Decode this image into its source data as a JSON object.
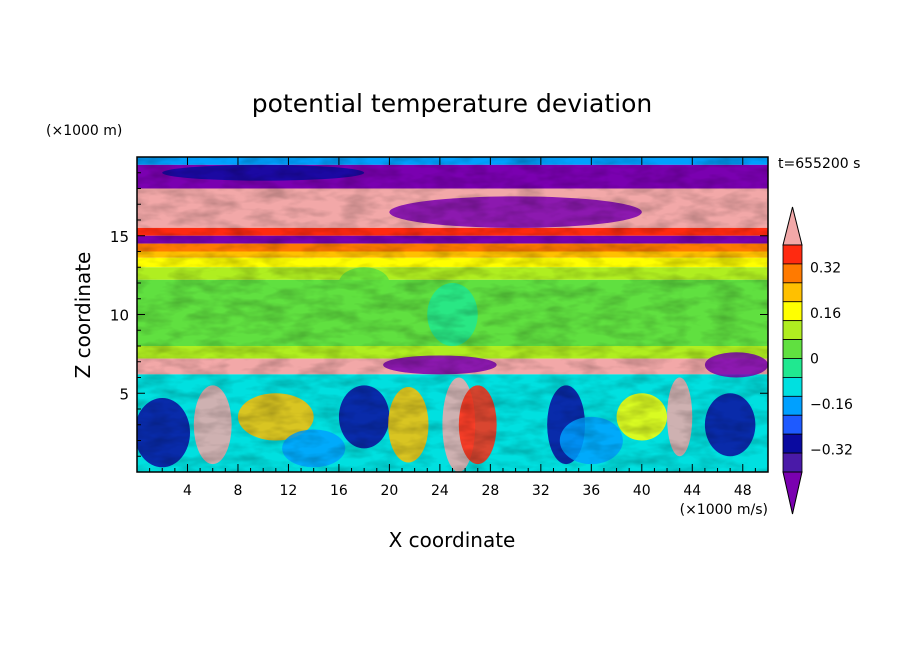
{
  "chart_data": {
    "type": "heatmap",
    "title": "potential temperature deviation",
    "xlabel": "X coordinate",
    "ylabel": "Z coordinate",
    "x_unit": "(×1000 m/s)",
    "y_unit": "(×1000 m)",
    "time_label": "t=655200 s",
    "xlim": [
      0,
      50
    ],
    "ylim": [
      0,
      20
    ],
    "x_ticks": [
      4,
      8,
      12,
      16,
      20,
      24,
      28,
      32,
      36,
      40,
      44,
      48
    ],
    "y_ticks": [
      5,
      10,
      15
    ],
    "colorbar": {
      "levels": [
        -0.48,
        -0.4,
        -0.32,
        -0.24,
        -0.16,
        -0.08,
        0,
        0.08,
        0.16,
        0.24,
        0.32,
        0.4,
        0.48
      ],
      "tick_labels": [
        "0.32",
        "0.16",
        "0",
        "−0.16",
        "−0.32"
      ],
      "tick_values": [
        0.32,
        0.16,
        0,
        -0.16,
        -0.32
      ],
      "colors": [
        "#7a00b0",
        "#4a1aa8",
        "#0a0aa0",
        "#1e5aff",
        "#00a0ff",
        "#00e0e0",
        "#20e890",
        "#60e040",
        "#b0ee20",
        "#ffff00",
        "#ffc000",
        "#ff7a00",
        "#ff2a10",
        "#f2a8a8"
      ]
    },
    "bands": [
      {
        "z": [
          19.5,
          20
        ],
        "value": -0.2
      },
      {
        "z": [
          18,
          19.5
        ],
        "value": -0.5
      },
      {
        "z": [
          15.5,
          18
        ],
        "value": 0.5
      },
      {
        "z": [
          15,
          15.5
        ],
        "value": 0.45
      },
      {
        "z": [
          14.5,
          15
        ],
        "value": -0.5
      },
      {
        "z": [
          14,
          14.5
        ],
        "value": 0.36
      },
      {
        "z": [
          13.6,
          14
        ],
        "value": 0.28
      },
      {
        "z": [
          13,
          13.6
        ],
        "value": 0.22
      },
      {
        "z": [
          12.2,
          13
        ],
        "value": 0.12
      },
      {
        "z": [
          8,
          12.2
        ],
        "value": 0.04
      },
      {
        "z": [
          7.2,
          8
        ],
        "value": 0.1
      },
      {
        "z": [
          6.2,
          7.2
        ],
        "value": 0.5
      },
      {
        "z": [
          0,
          6.2
        ],
        "value": -0.1
      }
    ]
  }
}
